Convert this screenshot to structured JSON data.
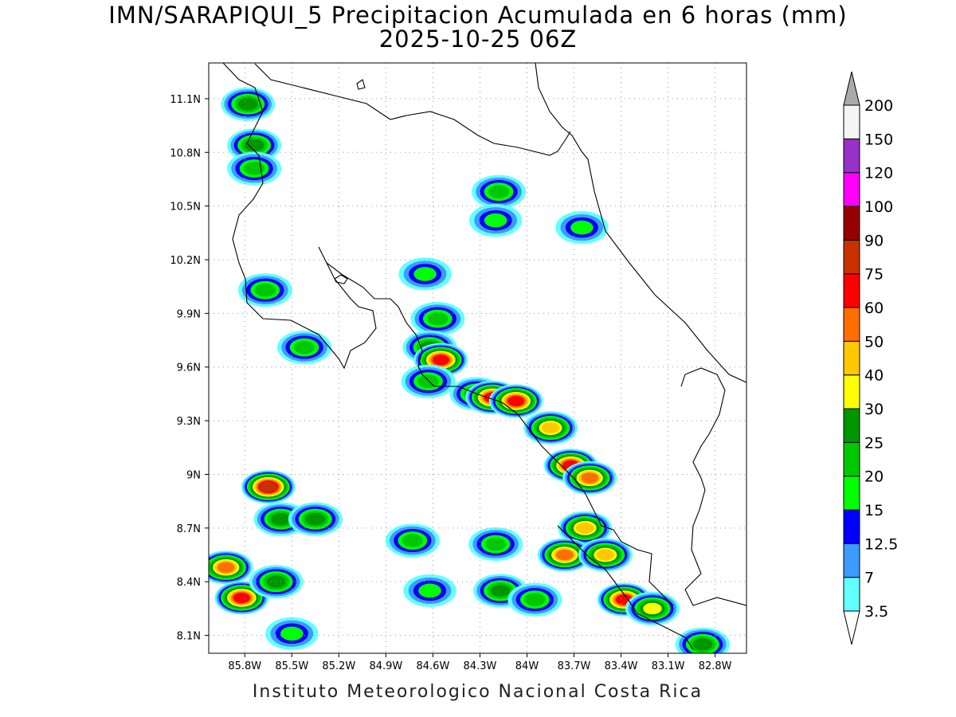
{
  "title_line1": "IMN/SARAPIQUI_5 Precipitacion Acumulada en 6 horas (mm)",
  "title_line2": "2025-10-25 06Z",
  "footer": "Instituto Meteorologico Nacional Costa Rica",
  "map": {
    "lon_range": [
      -86.03,
      -82.6
    ],
    "lat_range": [
      8.0,
      11.3
    ],
    "x_ticks": [
      "85.8W",
      "85.5W",
      "85.2W",
      "84.9W",
      "84.6W",
      "84.3W",
      "84W",
      "83.7W",
      "83.4W",
      "83.1W",
      "82.8W"
    ],
    "x_tick_values": [
      -85.8,
      -85.5,
      -85.2,
      -84.9,
      -84.6,
      -84.3,
      -84.0,
      -83.7,
      -83.4,
      -83.1,
      -82.8
    ],
    "y_ticks": [
      "8.1N",
      "8.4N",
      "8.7N",
      "9N",
      "9.3N",
      "9.6N",
      "9.9N",
      "10.2N",
      "10.5N",
      "10.8N",
      "11.1N"
    ],
    "y_tick_values": [
      8.1,
      8.4,
      8.7,
      9.0,
      9.3,
      9.6,
      9.9,
      10.2,
      10.5,
      10.8,
      11.1
    ],
    "grid": "dotted"
  },
  "colorbar": {
    "labels": [
      "3.5",
      "7",
      "12.5",
      "15",
      "20",
      "25",
      "30",
      "40",
      "50",
      "60",
      "75",
      "90",
      "100",
      "120",
      "150",
      "200"
    ],
    "colors": [
      "#64ffff",
      "#3c9bff",
      "#0000ff",
      "#00ff00",
      "#00c800",
      "#009600",
      "#ffff00",
      "#ffc800",
      "#ff6e00",
      "#ff0000",
      "#c83200",
      "#960000",
      "#ff00ff",
      "#9632c8",
      "#f5f5f5",
      "#aaaaaa"
    ],
    "under_color": "#ffffff",
    "over_color": "#aaaaaa"
  },
  "precip_cells": [
    {
      "lon": -85.78,
      "lat": 11.07,
      "peak": 25
    },
    {
      "lon": -85.74,
      "lat": 10.84,
      "peak": 25
    },
    {
      "lon": -85.74,
      "lat": 10.71,
      "peak": 20
    },
    {
      "lon": -85.67,
      "lat": 10.03,
      "peak": 20
    },
    {
      "lon": -85.42,
      "lat": 9.71,
      "peak": 20
    },
    {
      "lon": -84.18,
      "lat": 10.58,
      "peak": 20
    },
    {
      "lon": -84.2,
      "lat": 10.42,
      "peak": 15
    },
    {
      "lon": -83.65,
      "lat": 10.38,
      "peak": 15
    },
    {
      "lon": -84.65,
      "lat": 10.12,
      "peak": 15
    },
    {
      "lon": -84.57,
      "lat": 9.87,
      "peak": 20
    },
    {
      "lon": -84.62,
      "lat": 9.71,
      "peak": 25
    },
    {
      "lon": -84.55,
      "lat": 9.64,
      "peak": 60
    },
    {
      "lon": -84.63,
      "lat": 9.52,
      "peak": 20
    },
    {
      "lon": -84.32,
      "lat": 9.45,
      "peak": 25
    },
    {
      "lon": -84.22,
      "lat": 9.43,
      "peak": 60
    },
    {
      "lon": -84.07,
      "lat": 9.41,
      "peak": 60
    },
    {
      "lon": -83.85,
      "lat": 9.26,
      "peak": 40
    },
    {
      "lon": -83.72,
      "lat": 9.05,
      "peak": 60
    },
    {
      "lon": -83.6,
      "lat": 8.98,
      "peak": 50
    },
    {
      "lon": -83.63,
      "lat": 8.7,
      "peak": 40
    },
    {
      "lon": -83.76,
      "lat": 8.55,
      "peak": 50
    },
    {
      "lon": -83.5,
      "lat": 8.55,
      "peak": 40
    },
    {
      "lon": -83.38,
      "lat": 8.3,
      "peak": 60
    },
    {
      "lon": -83.2,
      "lat": 8.25,
      "peak": 30
    },
    {
      "lon": -82.88,
      "lat": 8.05,
      "peak": 25
    },
    {
      "lon": -85.65,
      "lat": 8.93,
      "peak": 75
    },
    {
      "lon": -85.57,
      "lat": 8.75,
      "peak": 25
    },
    {
      "lon": -85.35,
      "lat": 8.75,
      "peak": 25
    },
    {
      "lon": -85.92,
      "lat": 8.48,
      "peak": 50
    },
    {
      "lon": -85.82,
      "lat": 8.31,
      "peak": 60
    },
    {
      "lon": -85.6,
      "lat": 8.4,
      "peak": 25
    },
    {
      "lon": -85.5,
      "lat": 8.11,
      "peak": 15
    },
    {
      "lon": -84.73,
      "lat": 8.63,
      "peak": 20
    },
    {
      "lon": -84.2,
      "lat": 8.61,
      "peak": 20
    },
    {
      "lon": -84.62,
      "lat": 8.35,
      "peak": 15
    },
    {
      "lon": -84.17,
      "lat": 8.35,
      "peak": 25
    },
    {
      "lon": -83.95,
      "lat": 8.3,
      "peak": 20
    }
  ]
}
